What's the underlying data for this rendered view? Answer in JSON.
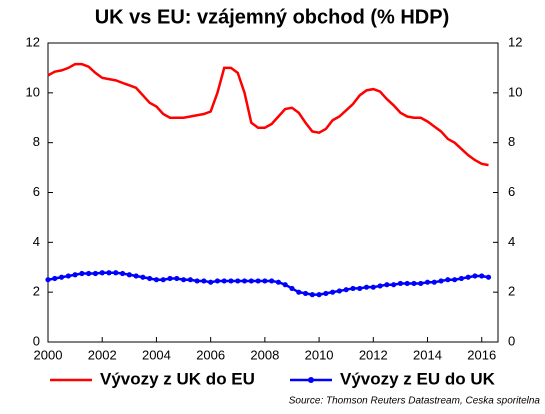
{
  "chart_data": {
    "type": "line",
    "title": "UK vs EU: vzájemný obchod (% HDP)",
    "source": "Source: Thomson Reuters Datastream, Ceska sporitelna",
    "x": [
      2000,
      2000.25,
      2000.5,
      2000.75,
      2001,
      2001.25,
      2001.5,
      2001.75,
      2002,
      2002.25,
      2002.5,
      2002.75,
      2003,
      2003.25,
      2003.5,
      2003.75,
      2004,
      2004.25,
      2004.5,
      2004.75,
      2005,
      2005.25,
      2005.5,
      2005.75,
      2006,
      2006.25,
      2006.5,
      2006.75,
      2007,
      2007.25,
      2007.5,
      2007.75,
      2008,
      2008.25,
      2008.5,
      2008.75,
      2009,
      2009.25,
      2009.5,
      2009.75,
      2010,
      2010.25,
      2010.5,
      2010.75,
      2011,
      2011.25,
      2011.5,
      2011.75,
      2012,
      2012.25,
      2012.5,
      2012.75,
      2013,
      2013.25,
      2013.5,
      2013.75,
      2014,
      2014.25,
      2014.5,
      2014.75,
      2015,
      2015.25,
      2015.5,
      2015.75,
      2016,
      2016.25
    ],
    "series": [
      {
        "name": "Vývozy z UK do EU",
        "color": "#ff0000",
        "marker": false,
        "values": [
          10.7,
          10.85,
          10.9,
          11.0,
          11.15,
          11.15,
          11.05,
          10.8,
          10.6,
          10.55,
          10.5,
          10.4,
          10.3,
          10.2,
          9.9,
          9.6,
          9.45,
          9.15,
          9.0,
          9.0,
          9.0,
          9.05,
          9.1,
          9.15,
          9.25,
          10.0,
          11.0,
          11.0,
          10.8,
          10.0,
          8.8,
          8.6,
          8.6,
          8.75,
          9.05,
          9.35,
          9.4,
          9.2,
          8.8,
          8.45,
          8.4,
          8.55,
          8.9,
          9.05,
          9.3,
          9.55,
          9.9,
          10.1,
          10.15,
          10.05,
          9.75,
          9.5,
          9.2,
          9.05,
          9.0,
          9.0,
          8.85,
          8.65,
          8.45,
          8.15,
          8.0,
          7.75,
          7.5,
          7.3,
          7.15,
          7.1
        ]
      },
      {
        "name": "Vývozy z EU do UK",
        "color": "#0000ff",
        "marker": true,
        "values": [
          2.5,
          2.55,
          2.6,
          2.65,
          2.7,
          2.75,
          2.75,
          2.75,
          2.78,
          2.78,
          2.78,
          2.75,
          2.7,
          2.65,
          2.6,
          2.55,
          2.5,
          2.5,
          2.55,
          2.55,
          2.5,
          2.5,
          2.45,
          2.45,
          2.4,
          2.45,
          2.45,
          2.45,
          2.45,
          2.45,
          2.45,
          2.45,
          2.45,
          2.45,
          2.4,
          2.3,
          2.15,
          2.0,
          1.95,
          1.9,
          1.9,
          1.95,
          2.0,
          2.05,
          2.1,
          2.15,
          2.15,
          2.2,
          2.2,
          2.25,
          2.3,
          2.3,
          2.35,
          2.35,
          2.35,
          2.35,
          2.4,
          2.4,
          2.45,
          2.5,
          2.5,
          2.55,
          2.6,
          2.65,
          2.65,
          2.6
        ]
      }
    ],
    "xlim": [
      2000,
      2016.6
    ],
    "xticks": [
      2000,
      2002,
      2004,
      2006,
      2008,
      2010,
      2012,
      2014,
      2016
    ],
    "ylim": [
      0,
      12
    ],
    "yticks": [
      0,
      2,
      4,
      6,
      8,
      10,
      12
    ],
    "y2lim": [
      0,
      12
    ],
    "y2ticks": [
      0,
      2,
      4,
      6,
      8,
      10,
      12
    ],
    "legend": "bottom"
  }
}
